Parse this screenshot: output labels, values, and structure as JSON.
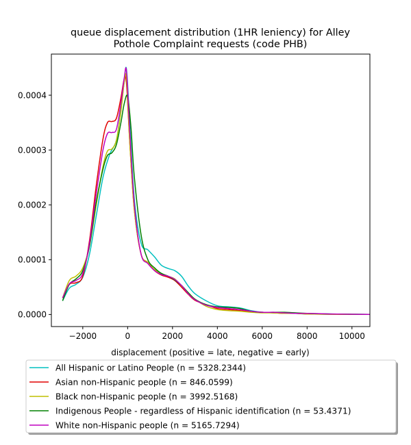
{
  "chart_data": {
    "type": "line",
    "title": [
      "queue displacement distribution (1HR leniency) for Alley",
      "Pothole Complaint  requests (code PHB)"
    ],
    "xlabel": "displacement (positive = late, negative = early)",
    "ylabel": "",
    "xlim": [
      -3400,
      10800
    ],
    "ylim": [
      -2.2e-05,
      0.000475
    ],
    "x_ticks": [
      -2000,
      0,
      2000,
      4000,
      6000,
      8000,
      10000
    ],
    "x_tick_labels": [
      "−2000",
      "0",
      "2000",
      "4000",
      "6000",
      "8000",
      "10000"
    ],
    "y_ticks": [
      0,
      0.0001,
      0.0002,
      0.0003,
      0.0004
    ],
    "y_tick_labels": [
      "0.0000",
      "0.0001",
      "0.0002",
      "0.0003",
      "0.0004"
    ],
    "grid": false,
    "legend_position": "below-plot",
    "series": [
      {
        "name": "All Hispanic or Latino People (n = 5328.2344)",
        "color": "#00bfbf",
        "x": [
          -2900,
          -2600,
          -2300,
          -2000,
          -1700,
          -1400,
          -1100,
          -800,
          -500,
          -300,
          -150,
          -50,
          100,
          300,
          600,
          900,
          1200,
          1500,
          1800,
          2100,
          2400,
          2700,
          3000,
          3500,
          4000,
          4500,
          5000,
          5500,
          6000,
          6500,
          7000,
          7500,
          8000,
          8500,
          9000,
          9500,
          10000,
          10800
        ],
        "y": [
          2.5e-05,
          4.8e-05,
          5.5e-05,
          6.8e-05,
          0.00011,
          0.00018,
          0.00025,
          0.000292,
          0.000318,
          0.000375,
          0.000425,
          0.000447,
          0.000345,
          0.00021,
          0.00013,
          0.000118,
          0.000105,
          9e-05,
          8.4e-05,
          8e-05,
          7e-05,
          5.2e-05,
          3.8e-05,
          2.5e-05,
          1.6e-05,
          1.4e-05,
          1.2e-05,
          7e-06,
          4e-06,
          3e-06,
          3e-06,
          2e-06,
          1e-06,
          1e-06,
          1e-06,
          5e-07,
          3e-07,
          2e-07
        ]
      },
      {
        "name": "Asian non-Hispanic people (n = 846.0599)",
        "color": "#e00000",
        "x": [
          -2900,
          -2600,
          -2300,
          -2000,
          -1700,
          -1400,
          -1100,
          -900,
          -700,
          -500,
          -300,
          -150,
          -50,
          100,
          300,
          600,
          900,
          1200,
          1500,
          1800,
          2100,
          2400,
          2700,
          3000,
          3500,
          4000,
          4500,
          5000,
          5500,
          6000,
          6500,
          7000,
          7500,
          8000,
          9000,
          10000,
          10800
        ],
        "y": [
          3e-05,
          5.5e-05,
          5.8e-05,
          7e-05,
          0.000135,
          0.000235,
          0.00032,
          0.00035,
          0.000352,
          0.000358,
          0.000395,
          0.00043,
          0.00042,
          0.00031,
          0.00019,
          0.00011,
          9.5e-05,
          8e-05,
          7.2e-05,
          6.8e-05,
          6.2e-05,
          5e-05,
          3.7e-05,
          2.6e-05,
          1.8e-05,
          1.1e-05,
          9e-06,
          7e-06,
          5e-06,
          4e-06,
          3e-06,
          2e-06,
          2e-06,
          1e-06,
          5e-07,
          2e-07,
          1e-07
        ]
      },
      {
        "name": "Black non-Hispanic people (n = 3992.5168)",
        "color": "#bfbf00",
        "x": [
          -2900,
          -2600,
          -2300,
          -2000,
          -1700,
          -1400,
          -1100,
          -900,
          -700,
          -500,
          -300,
          -150,
          -50,
          100,
          300,
          600,
          900,
          1200,
          1500,
          1800,
          2100,
          2400,
          2700,
          3000,
          3500,
          4000,
          4500,
          5000,
          5500,
          6000,
          6500,
          7000,
          7500,
          8000,
          9000,
          10000,
          10800
        ],
        "y": [
          3e-05,
          6.2e-05,
          7e-05,
          8.5e-05,
          0.000125,
          0.0002,
          0.00027,
          0.000298,
          0.000302,
          0.000318,
          0.00037,
          0.000425,
          0.00043,
          0.00031,
          0.00019,
          0.00011,
          9.5e-05,
          8.2e-05,
          7.5e-05,
          7e-05,
          6.5e-05,
          5.2e-05,
          4e-05,
          2.8e-05,
          1.5e-05,
          9e-06,
          7e-06,
          6e-06,
          4e-06,
          3e-06,
          3e-06,
          2e-06,
          2e-06,
          1e-06,
          5e-07,
          2e-07,
          1e-07
        ]
      },
      {
        "name": "Indigenous People - regardless of Hispanic identification (n = 53.4371)",
        "color": "#008000",
        "x": [
          -2900,
          -2600,
          -2300,
          -2000,
          -1700,
          -1400,
          -1100,
          -900,
          -700,
          -500,
          -300,
          -150,
          0,
          150,
          300,
          600,
          900,
          1200,
          1500,
          1800,
          2100,
          2400,
          2700,
          3000,
          3500,
          4000,
          4500,
          5000,
          5500,
          6000,
          6500,
          7000,
          7500,
          8000,
          9000,
          10000,
          10800
        ],
        "y": [
          2.5e-05,
          5.5e-05,
          6.5e-05,
          8e-05,
          0.000125,
          0.000205,
          0.000265,
          0.00029,
          0.000295,
          0.00031,
          0.00035,
          0.000385,
          0.000398,
          0.00034,
          0.00025,
          0.000145,
          0.0001,
          8.5e-05,
          7.5e-05,
          7e-05,
          6.3e-05,
          5.3e-05,
          4e-05,
          2.8e-05,
          1.8e-05,
          1.4e-05,
          1.3e-05,
          1.1e-05,
          6e-06,
          4e-06,
          4e-06,
          4e-06,
          3e-06,
          2e-06,
          1e-06,
          5e-07,
          2e-07
        ]
      },
      {
        "name": "White non-Hispanic people (n = 5165.7294)",
        "color": "#bf00bf",
        "x": [
          -2900,
          -2600,
          -2300,
          -2000,
          -1700,
          -1400,
          -1100,
          -900,
          -700,
          -500,
          -300,
          -150,
          -50,
          100,
          300,
          600,
          900,
          1200,
          1500,
          1800,
          2100,
          2400,
          2700,
          3000,
          3500,
          4000,
          4500,
          5000,
          5500,
          6000,
          6500,
          7000,
          7500,
          8000,
          9000,
          10000,
          10800
        ],
        "y": [
          3e-05,
          5.6e-05,
          6.2e-05,
          7.5e-05,
          0.00013,
          0.00022,
          0.0003,
          0.00033,
          0.000332,
          0.000338,
          0.000385,
          0.000432,
          0.000443,
          0.00033,
          0.0002,
          0.00011,
          9.3e-05,
          8e-05,
          7.3e-05,
          7e-05,
          6.4e-05,
          5.3e-05,
          3.8e-05,
          2.7e-05,
          1.7e-05,
          1.3e-05,
          1.1e-05,
          9e-06,
          6e-06,
          4e-06,
          4e-06,
          3e-06,
          2e-06,
          2e-06,
          1e-06,
          4e-07,
          2e-07
        ]
      }
    ]
  }
}
